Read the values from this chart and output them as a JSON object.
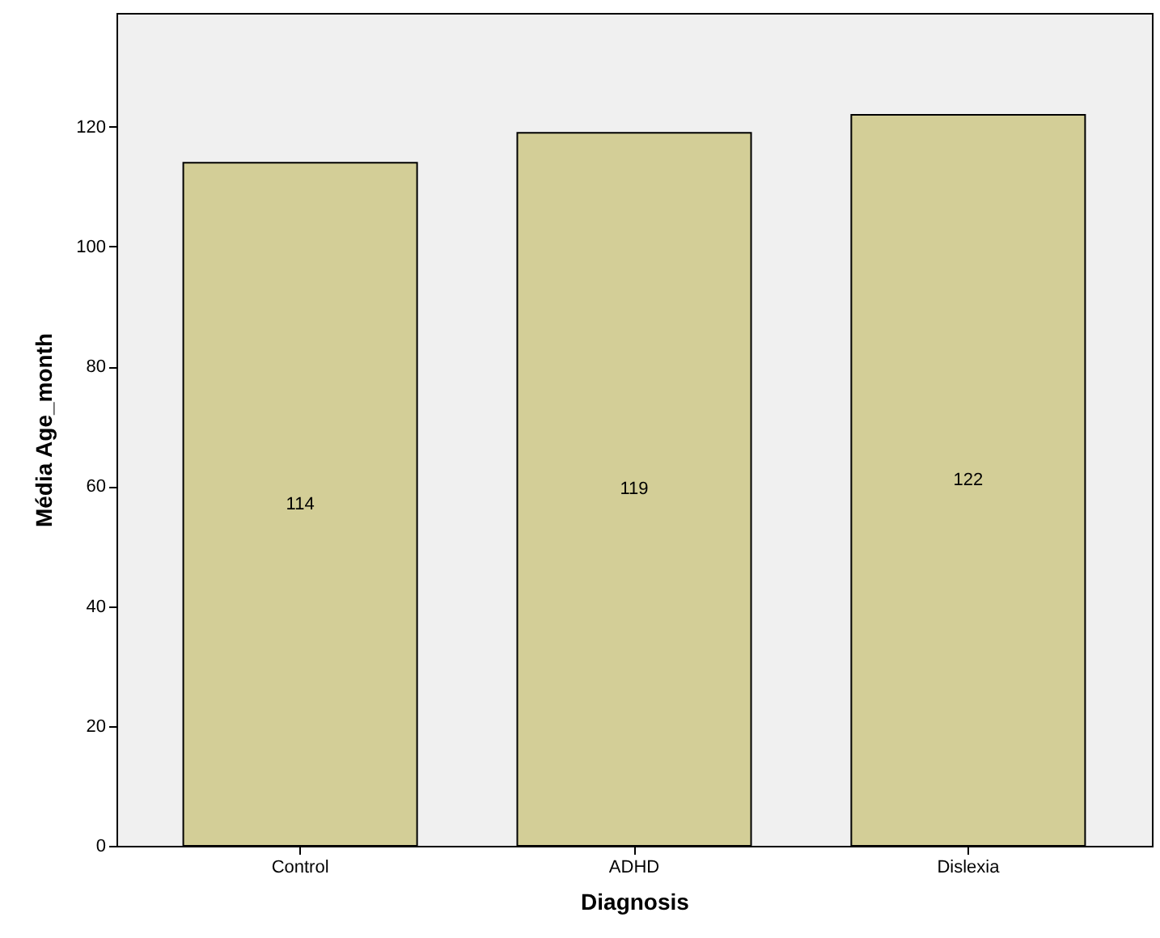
{
  "chart_data": {
    "type": "bar",
    "xlabel": "Diagnosis",
    "ylabel": "Média Age_month",
    "categories": [
      "Control",
      "ADHD",
      "Dislexia"
    ],
    "values": [
      114,
      119,
      122
    ],
    "color": "#d3ce97",
    "ylim": [
      0,
      139
    ],
    "yticks": [
      0,
      20,
      40,
      60,
      80,
      100,
      120
    ],
    "grid": false,
    "data_labels": true
  }
}
